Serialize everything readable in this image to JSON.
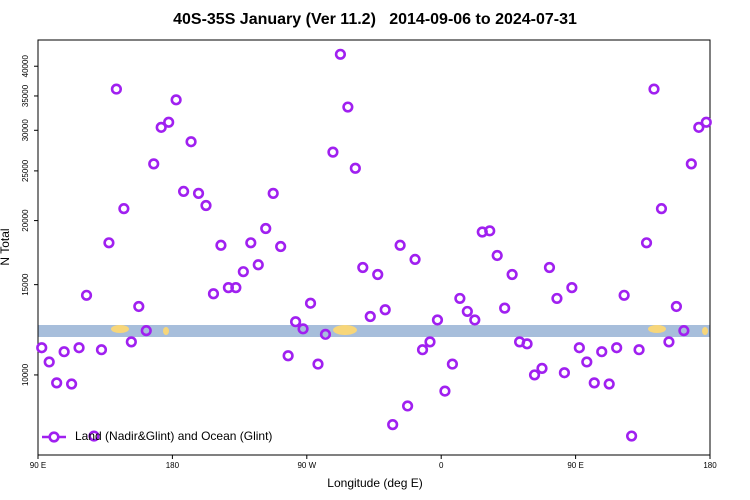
{
  "chart_data": {
    "type": "scatter",
    "title": "40S-35S January (Ver 11.2)   2014-09-06 to 2024-07-31",
    "x_label": "Longitude (deg E)",
    "y_label": "N Total",
    "log_y": true,
    "color": "#a020f0",
    "legend": "bottom-left",
    "series": [
      {
        "name": "Land (Nadir&Glint) and Ocean (Glint)",
        "color": "#a020f0",
        "x": [
          92.5,
          97.5,
          102.5,
          107.5,
          112.5,
          117.5,
          122.5,
          127.5,
          132.5,
          137.5,
          142.5,
          147.5,
          152.5,
          157.5,
          162.5,
          167.5,
          172.5,
          177.5,
          182.5,
          187.5,
          192.5,
          197.5,
          202.5,
          207.5,
          212.5,
          217.5,
          222.5,
          227.5,
          232.5,
          237.5,
          242.5,
          247.5,
          252.5,
          257.5,
          262.5,
          267.5,
          272.5,
          277.5,
          282.5,
          287.5,
          292.5,
          297.5,
          302.5,
          307.5,
          312.5,
          317.5,
          322.5,
          327.5,
          332.5,
          337.5,
          342.5,
          347.5,
          352.5,
          357.5,
          362.5,
          367.5,
          372.5,
          377.5,
          382.5,
          387.5,
          392.5,
          397.5,
          402.5,
          407.5,
          412.5,
          417.5,
          422.5,
          427.5,
          432.5,
          437.5,
          442.5,
          447.5,
          452.5,
          457.5,
          462.5,
          467.5,
          472.5,
          477.5,
          482.5,
          487.5,
          492.5,
          497.5,
          502.5,
          507.5,
          512.5,
          517.5,
          522.5,
          527.5,
          532.5,
          537.5
        ],
        "values": [
          11300,
          10600,
          9650,
          11100,
          9600,
          11300,
          14300,
          7600,
          11200,
          18100,
          36100,
          21100,
          11600,
          13600,
          12200,
          25800,
          30400,
          31100,
          34400,
          22800,
          28500,
          22600,
          21400,
          14400,
          17900,
          14800,
          14800,
          15900,
          18100,
          16400,
          19300,
          22600,
          17800,
          10900,
          12700,
          12300,
          13800,
          10500,
          12000,
          27200,
          42200,
          33300,
          25300,
          16200,
          13000,
          15700,
          13400,
          8000,
          17900,
          8700,
          16800,
          11200,
          11600,
          12800,
          9300,
          10500,
          14100,
          13300,
          12800,
          19000,
          19100,
          17100,
          13500,
          15700,
          11600,
          11500,
          10000,
          10300,
          16200,
          14100,
          10100,
          14800,
          11300,
          10600,
          9650,
          11100,
          9600,
          11300,
          14300,
          7600,
          11200,
          18100,
          36100,
          21100,
          11600,
          13600,
          12200,
          25800,
          30400,
          31100
        ]
      }
    ],
    "xlim": [
      90,
      540
    ],
    "xticks": [
      {
        "value": 90,
        "label": "90 E"
      },
      {
        "value": 180,
        "label": "180"
      },
      {
        "value": 270,
        "label": "90 W"
      },
      {
        "value": 360,
        "label": "0"
      },
      {
        "value": 450,
        "label": "90 E"
      },
      {
        "value": 540,
        "label": "180"
      }
    ],
    "ylim": [
      6980,
      45000
    ],
    "yticks": [
      10000,
      15000,
      20000,
      25000,
      30000,
      35000,
      40000
    ]
  }
}
